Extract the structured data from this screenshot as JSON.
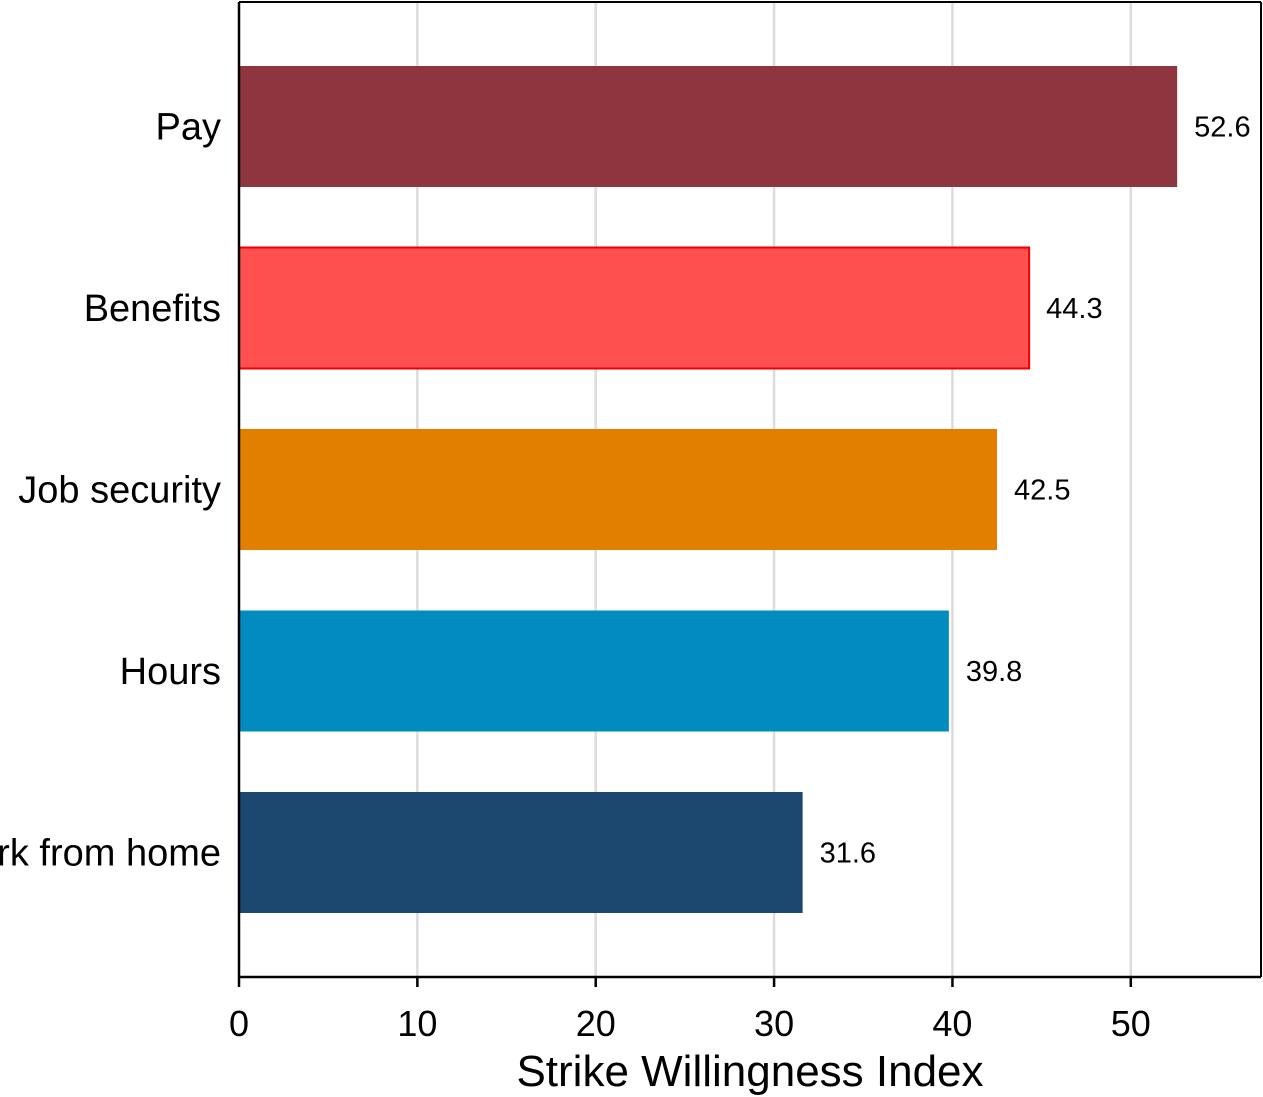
{
  "chart_data": {
    "type": "bar",
    "orientation": "horizontal",
    "categories": [
      "Pay",
      "Benefits",
      "Job security",
      "Hours",
      "Work from home"
    ],
    "values": [
      52.6,
      44.3,
      42.5,
      39.8,
      31.6
    ],
    "value_labels": [
      "52.6",
      "44.3",
      "42.5",
      "39.8",
      "31.6"
    ],
    "colors": [
      "#8e3540",
      "#ff4f4f",
      "#e37f00",
      "#028bbf",
      "#1c486f"
    ],
    "xlabel": "Strike Willingness Index",
    "ylabel": "",
    "title": "",
    "xlim": [
      0,
      57.3
    ],
    "xticks": [
      0,
      10,
      20,
      30,
      40,
      50
    ],
    "xtick_labels": [
      "0",
      "10",
      "20",
      "30",
      "40",
      "50"
    ],
    "grid": "vertical",
    "legend": "none"
  }
}
